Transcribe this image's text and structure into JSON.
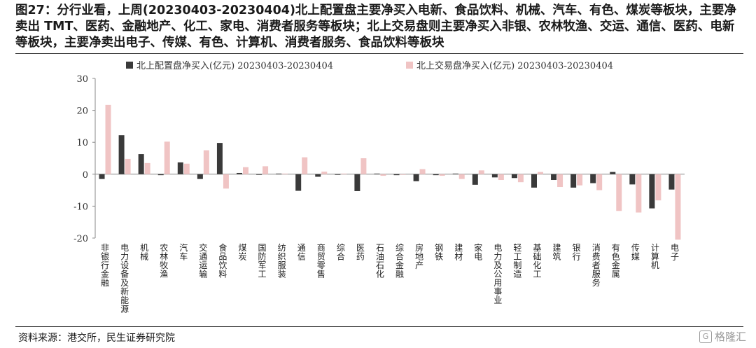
{
  "title": "图27：分行业看，上周(20230403-20230404)北上配置盘主要净买入电新、食品饮料、机械、汽车、有色、煤炭等板块，主要净卖出 TMT、医药、金融地产、化工、家电、消费者服务等板块；北上交易盘则主要净买入非银、农林牧渔、交运、通信、医药、电新等板块，主要净卖出电子、传媒、有色、计算机、消费者服务、食品饮料等板块",
  "source": "资料来源：港交所，民生证券研究院",
  "watermark": "格隆汇",
  "chart_data": {
    "type": "bar",
    "categories": [
      "非银行金融",
      "电力设备及新能源",
      "机械",
      "农林牧渔",
      "汽车",
      "交通运输",
      "食品饮料",
      "煤炭",
      "国防军工",
      "纺织服装",
      "通信",
      "商贸零售",
      "综合",
      "医药",
      "石油石化",
      "综合金融",
      "房地产",
      "钢铁",
      "建材",
      "家电",
      "电力及公用事业",
      "轻工制造",
      "基础化工",
      "建筑",
      "银行",
      "消费者服务",
      "有色金属",
      "传媒",
      "计算机",
      "电子"
    ],
    "series": [
      {
        "name": "北上配置盘净买入(亿元) 20230403-20230404",
        "color": "#3a3a3a",
        "values": [
          -1.5,
          12.2,
          6.3,
          -0.3,
          3.7,
          -1.5,
          9.8,
          0.4,
          -0.2,
          0.2,
          -5.2,
          -0.8,
          -0.2,
          -5.3,
          0.2,
          -0.3,
          -2.2,
          -0.3,
          0.2,
          -3.3,
          -1.0,
          -1.2,
          -4.2,
          -1.8,
          -4.2,
          -2.8,
          0.7,
          -3.2,
          -10.7,
          -4.8
        ]
      },
      {
        "name": "北上交易盘净买入(亿元) 20230403-20230404",
        "color": "#f0c4c4",
        "values": [
          21.7,
          4.8,
          3.5,
          10.2,
          3.3,
          7.5,
          -4.5,
          2.2,
          2.5,
          0.2,
          5.3,
          0.8,
          0.2,
          5.0,
          -0.5,
          -0.2,
          1.6,
          -0.5,
          -1.5,
          1.2,
          -1.8,
          -2.5,
          0.7,
          -4.0,
          -3.5,
          -5.0,
          -11.5,
          -12.0,
          -8.2,
          -20.5
        ]
      }
    ],
    "ylim": [
      -20,
      30
    ],
    "yticks": [
      -20,
      -10,
      0,
      10,
      20,
      30
    ],
    "legend": "top",
    "grid": false
  }
}
